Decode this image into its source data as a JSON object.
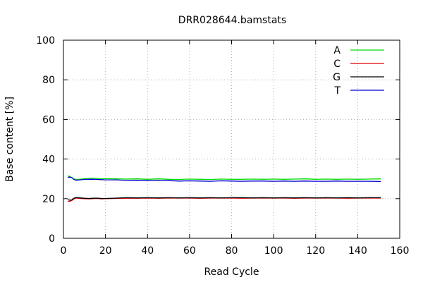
{
  "chart_data": {
    "type": "line",
    "title": "DRR028644.bamstats",
    "xlabel": "Read Cycle",
    "ylabel": "Base content [%]",
    "xlim": [
      0,
      160
    ],
    "ylim": [
      0,
      100
    ],
    "xticks": [
      "0",
      "20",
      "40",
      "60",
      "80",
      "100",
      "120",
      "140",
      "160"
    ],
    "yticks": [
      "0",
      "20",
      "40",
      "60",
      "80",
      "100"
    ],
    "grid": true,
    "legend_position": "top-right",
    "x": [
      2,
      3,
      4,
      5,
      6,
      8,
      10,
      12,
      14,
      16,
      18,
      20,
      25,
      30,
      35,
      40,
      45,
      50,
      55,
      60,
      65,
      70,
      75,
      80,
      85,
      90,
      95,
      100,
      105,
      110,
      115,
      120,
      125,
      130,
      135,
      140,
      145,
      151
    ],
    "series": [
      {
        "name": "A",
        "color": "#00dd00",
        "values": [
          31.5,
          31.3,
          30.6,
          30.0,
          29.7,
          29.8,
          30.1,
          30.2,
          30.4,
          30.2,
          30.0,
          30.1,
          30.0,
          29.9,
          30.0,
          29.8,
          30.0,
          29.8,
          29.7,
          29.9,
          29.8,
          29.7,
          29.9,
          29.8,
          29.8,
          29.9,
          29.8,
          29.9,
          29.8,
          29.9,
          30.0,
          29.8,
          29.9,
          29.8,
          29.9,
          29.8,
          29.9,
          30.0
        ]
      },
      {
        "name": "C",
        "color": "#dd0000",
        "values": [
          18.7,
          18.6,
          19.1,
          19.9,
          20.3,
          20.1,
          20.0,
          19.9,
          20.0,
          20.1,
          19.9,
          20.0,
          20.1,
          20.2,
          20.2,
          20.3,
          20.2,
          20.3,
          20.3,
          20.3,
          20.2,
          20.3,
          20.3,
          20.3,
          20.2,
          20.3,
          20.3,
          20.3,
          20.3,
          20.2,
          20.3,
          20.3,
          20.3,
          20.3,
          20.2,
          20.3,
          20.3,
          20.3
        ]
      },
      {
        "name": "G",
        "color": "#000000",
        "values": [
          19.5,
          19.2,
          19.4,
          20.2,
          20.6,
          20.4,
          20.2,
          20.1,
          20.2,
          20.3,
          20.1,
          20.1,
          20.3,
          20.5,
          20.4,
          20.5,
          20.4,
          20.5,
          20.4,
          20.5,
          20.4,
          20.5,
          20.4,
          20.5,
          20.5,
          20.4,
          20.5,
          20.4,
          20.5,
          20.4,
          20.5,
          20.4,
          20.5,
          20.4,
          20.5,
          20.4,
          20.5,
          20.5
        ]
      },
      {
        "name": "T",
        "color": "#0000cc",
        "values": [
          30.8,
          30.9,
          30.6,
          29.7,
          29.3,
          29.5,
          29.7,
          29.8,
          29.8,
          29.7,
          29.6,
          29.5,
          29.5,
          29.2,
          29.3,
          29.1,
          29.2,
          29.1,
          28.9,
          29.0,
          28.9,
          28.8,
          29.0,
          28.9,
          28.8,
          28.9,
          28.9,
          28.8,
          28.9,
          28.8,
          28.9,
          28.8,
          28.8,
          28.9,
          28.8,
          28.8,
          28.8,
          28.7
        ]
      }
    ]
  }
}
